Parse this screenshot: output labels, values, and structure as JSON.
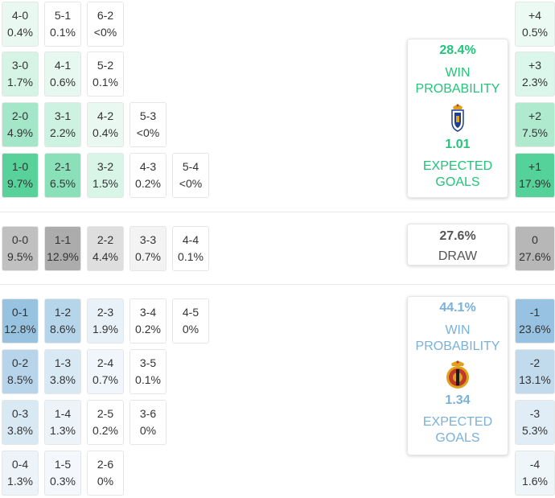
{
  "chart_data": {
    "type": "heatmap",
    "home": {
      "win_probability": "28.4%",
      "win_label": [
        "WIN",
        "PROBABILITY"
      ],
      "expected_goals": "1.01",
      "xg_label": [
        "EXPECTED",
        "GOALS"
      ],
      "color": "#22c47a",
      "scores": [
        {
          "label": "4-0",
          "value": "0.4%"
        },
        {
          "label": "5-1",
          "value": "0.1%"
        },
        {
          "label": "6-2",
          "value": "<0%"
        },
        {
          "label": "3-0",
          "value": "1.7%"
        },
        {
          "label": "4-1",
          "value": "0.6%"
        },
        {
          "label": "5-2",
          "value": "0.1%"
        },
        {
          "label": "2-0",
          "value": "4.9%"
        },
        {
          "label": "3-1",
          "value": "2.2%"
        },
        {
          "label": "4-2",
          "value": "0.4%"
        },
        {
          "label": "5-3",
          "value": "<0%"
        },
        {
          "label": "1-0",
          "value": "9.7%"
        },
        {
          "label": "2-1",
          "value": "6.5%"
        },
        {
          "label": "3-2",
          "value": "1.5%"
        },
        {
          "label": "4-3",
          "value": "0.2%"
        },
        {
          "label": "5-4",
          "value": "<0%"
        }
      ],
      "margins": [
        {
          "label": "+4",
          "value": "0.5%"
        },
        {
          "label": "+3",
          "value": "2.3%"
        },
        {
          "label": "+2",
          "value": "7.5%"
        },
        {
          "label": "+1",
          "value": "17.9%"
        }
      ]
    },
    "draw": {
      "probability": "27.6%",
      "label": "DRAW",
      "scores": [
        {
          "label": "0-0",
          "value": "9.5%"
        },
        {
          "label": "1-1",
          "value": "12.9%"
        },
        {
          "label": "2-2",
          "value": "4.4%"
        },
        {
          "label": "3-3",
          "value": "0.7%"
        },
        {
          "label": "4-4",
          "value": "0.1%"
        }
      ],
      "margin": {
        "label": "0",
        "value": "27.6%"
      }
    },
    "away": {
      "win_probability": "44.1%",
      "win_label": [
        "WIN",
        "PROBABILITY"
      ],
      "expected_goals": "1.34",
      "xg_label": [
        "EXPECTED",
        "GOALS"
      ],
      "color": "#7ab1d8",
      "scores": [
        {
          "label": "0-1",
          "value": "12.8%"
        },
        {
          "label": "1-2",
          "value": "8.6%"
        },
        {
          "label": "2-3",
          "value": "1.9%"
        },
        {
          "label": "3-4",
          "value": "0.2%"
        },
        {
          "label": "4-5",
          "value": "0%"
        },
        {
          "label": "0-2",
          "value": "8.5%"
        },
        {
          "label": "1-3",
          "value": "3.8%"
        },
        {
          "label": "2-4",
          "value": "0.7%"
        },
        {
          "label": "3-5",
          "value": "0.1%"
        },
        {
          "label": "0-3",
          "value": "3.8%"
        },
        {
          "label": "1-4",
          "value": "1.3%"
        },
        {
          "label": "2-5",
          "value": "0.2%"
        },
        {
          "label": "3-6",
          "value": "0%"
        },
        {
          "label": "0-4",
          "value": "1.3%"
        },
        {
          "label": "1-5",
          "value": "0.3%"
        },
        {
          "label": "2-6",
          "value": "0%"
        }
      ],
      "margins": [
        {
          "label": "-1",
          "value": "23.6%"
        },
        {
          "label": "-2",
          "value": "13.1%"
        },
        {
          "label": "-3",
          "value": "5.3%"
        },
        {
          "label": "-4",
          "value": "1.6%"
        }
      ]
    }
  }
}
